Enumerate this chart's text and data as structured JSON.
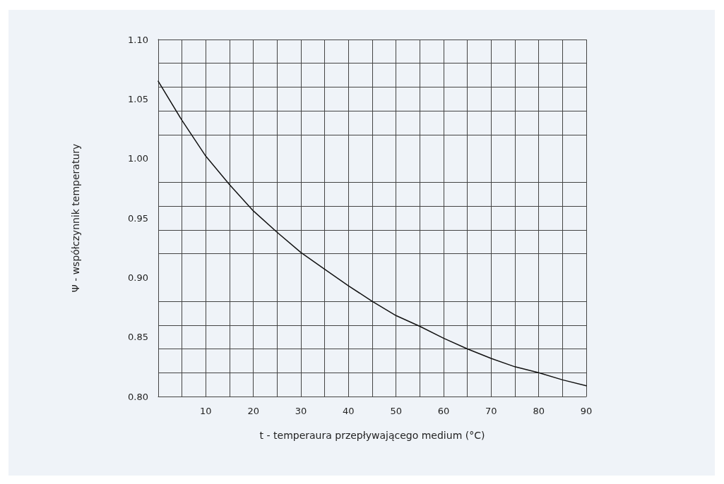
{
  "chart_data": {
    "type": "line",
    "xlabel": "t - temperaura przepływającego medium (°C)",
    "ylabel": "Ψ - współczynnik temperatury",
    "x": [
      0,
      5,
      10,
      15,
      20,
      25,
      30,
      35,
      40,
      45,
      50,
      55,
      60,
      65,
      70,
      75,
      80,
      85,
      90
    ],
    "series": [
      {
        "color": "#111111",
        "values": [
          1.065,
          1.032,
          1.002,
          0.978,
          0.956,
          0.938,
          0.921,
          0.907,
          0.893,
          0.88,
          0.868,
          0.859,
          0.849,
          0.84,
          0.832,
          0.825,
          0.82,
          0.814,
          0.809
        ]
      }
    ],
    "xlim": [
      0,
      90
    ],
    "xticks": [
      {
        "value": 5,
        "label": null
      },
      10,
      {
        "value": 15,
        "label": null
      },
      20,
      {
        "value": 25,
        "label": null
      },
      30,
      {
        "value": 35,
        "label": null
      },
      40,
      {
        "value": 45,
        "label": null
      },
      50,
      {
        "value": 55,
        "label": null
      },
      60,
      {
        "value": 65,
        "label": null
      },
      70,
      {
        "value": 75,
        "label": null
      },
      80,
      {
        "value": 85,
        "label": null
      },
      90
    ],
    "ylim": [
      0.8,
      1.1
    ],
    "yticks": [
      {
        "value": 0.8,
        "label": "0.80"
      },
      {
        "value": 0.82,
        "label": null
      },
      {
        "value": 0.84,
        "label": null
      },
      {
        "value": 0.85,
        "label": "0.85"
      },
      {
        "value": 0.86,
        "label": null
      },
      {
        "value": 0.88,
        "label": null
      },
      {
        "value": 0.9,
        "label": "0.90"
      },
      {
        "value": 0.92,
        "label": null
      },
      {
        "value": 0.94,
        "label": null
      },
      {
        "value": 0.95,
        "label": "0.95"
      },
      {
        "value": 0.96,
        "label": null
      },
      {
        "value": 0.98,
        "label": null
      },
      {
        "value": 1.0,
        "label": "1.00"
      },
      {
        "value": 1.02,
        "label": null
      },
      {
        "value": 1.04,
        "label": null
      },
      {
        "value": 1.05,
        "label": "1.05"
      },
      {
        "value": 1.06,
        "label": null
      },
      {
        "value": 1.08,
        "label": null
      },
      {
        "value": 1.1,
        "label": "1.10"
      }
    ],
    "grid": true,
    "line_style": "solid",
    "marker": "none"
  }
}
